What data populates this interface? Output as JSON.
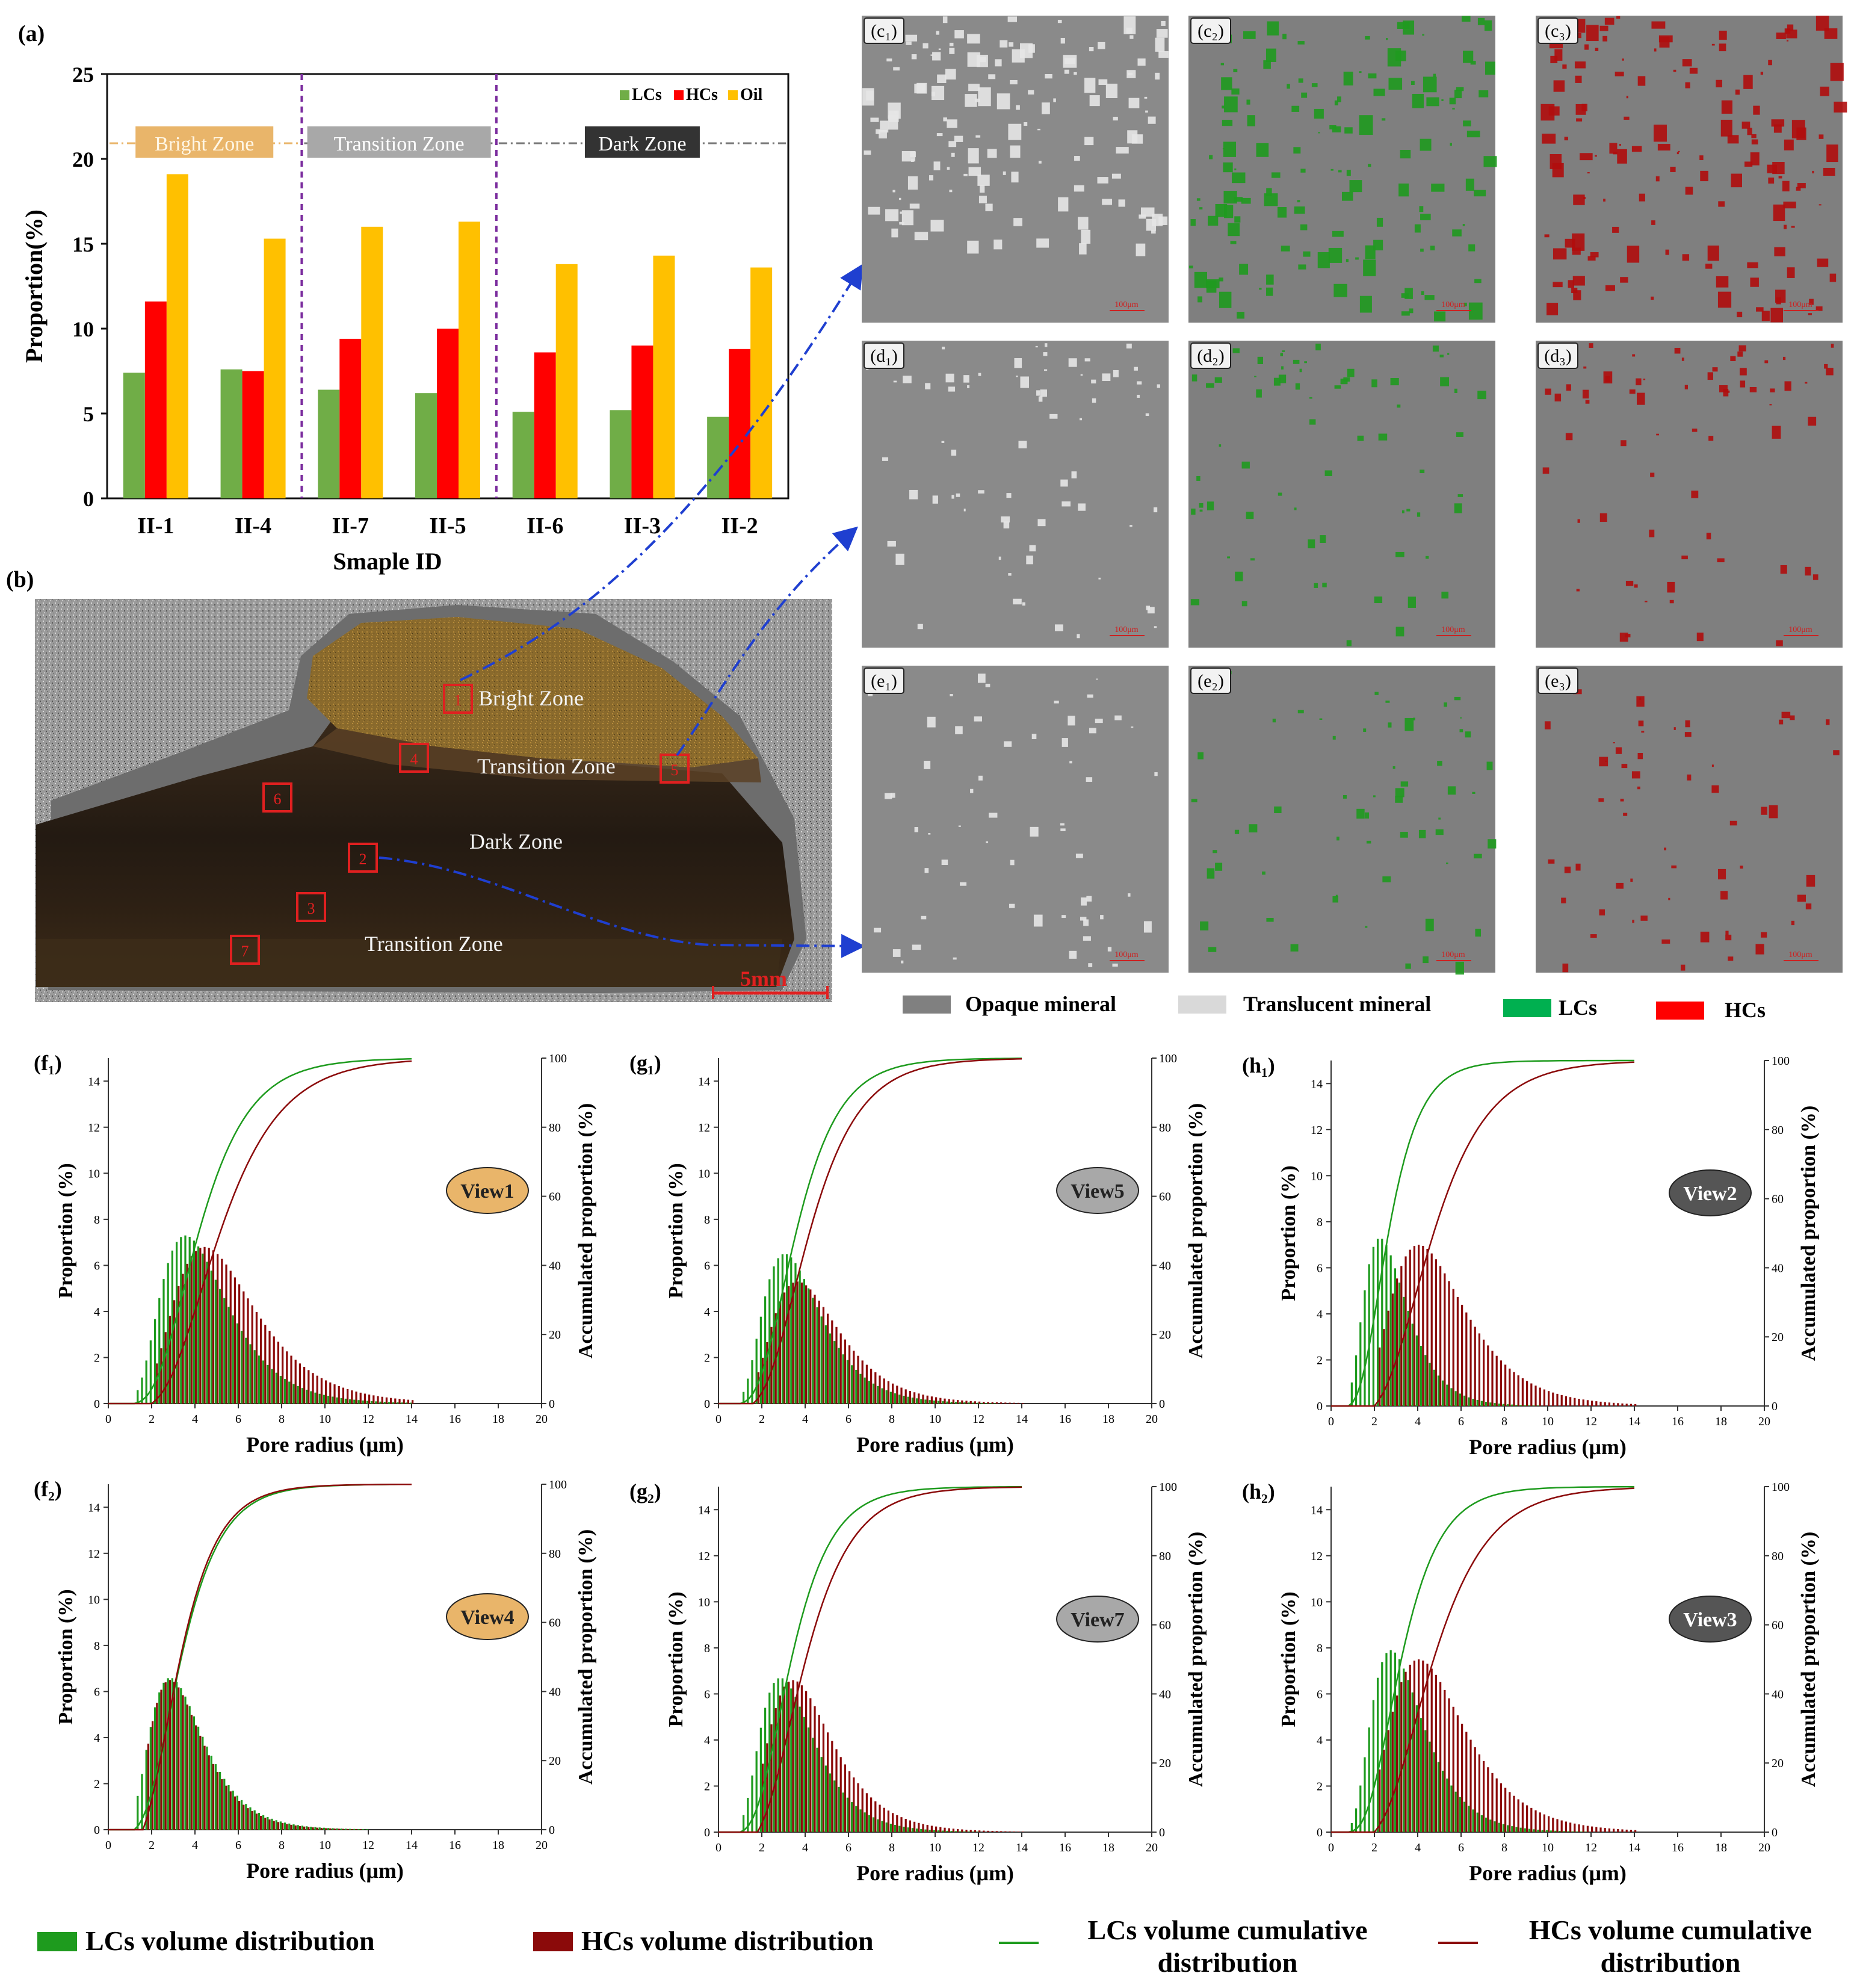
{
  "figure": {
    "panel_labels": {
      "a": "(a)",
      "b": "(b)",
      "c1": "(c₁)",
      "c2": "(c₂)",
      "c3": "(c₃)",
      "d1": "(d₁)",
      "d2": "(d₂)",
      "d3": "(d₃)",
      "e1": "(e₁)",
      "e2": "(e₂)",
      "e3": "(e₃)",
      "f1": "(f₁)",
      "g1": "(g₁)",
      "h1": "(h₁)",
      "f2": "(f₂)",
      "g2": "(g₂)",
      "h2": "(h₂)"
    },
    "colors": {
      "lcs": "#70ad47",
      "hcs": "#ff0000",
      "oil": "#ffc000",
      "lcs_dist": "#1e9b1e",
      "hcs_dist": "#8b0a0a",
      "opaque": "#808080",
      "translucent": "#d9d9d9",
      "arrow": "#1f3fd0",
      "view_orange": "#e9b56a",
      "view_grey": "#a8a8a8",
      "view_dark": "#555555"
    }
  },
  "photo": {
    "zone_labels": [
      "Bright Zone",
      "Transition Zone",
      "Dark Zone",
      "Transition Zone"
    ],
    "markers": [
      "1",
      "2",
      "3",
      "4",
      "5",
      "6",
      "7"
    ],
    "scale_bar": "5mm"
  },
  "micro": {
    "scale_text": "100μm",
    "legend": [
      {
        "label": "Opaque mineral",
        "color": "#808080"
      },
      {
        "label": "Translucent mineral",
        "color": "#d9d9d9"
      },
      {
        "label": "LCs",
        "color": "#00b050"
      },
      {
        "label": "HCs",
        "color": "#ff0000"
      }
    ]
  },
  "bottom_legend": {
    "lcs_dist": "LCs volume distribution",
    "hcs_dist": "HCs volume distribution",
    "lcs_cum": "LCs volume cumulative distribution",
    "hcs_cum": "HCs volume cumulative distribution"
  },
  "chart_data": [
    {
      "id": "a",
      "type": "bar",
      "title": "",
      "xlabel": "Smaple ID",
      "ylabel": "Proportion(%)",
      "ylim": [
        0,
        25
      ],
      "yticks": [
        0,
        5,
        10,
        15,
        20,
        25
      ],
      "categories": [
        "II-1",
        "II-4",
        "II-7",
        "II-5",
        "II-6",
        "II-3",
        "II-2"
      ],
      "series": [
        {
          "name": "LCs",
          "color": "#70ad47",
          "values": [
            7.4,
            7.6,
            6.4,
            6.2,
            5.1,
            5.2,
            4.8
          ]
        },
        {
          "name": "HCs",
          "color": "#ff0000",
          "values": [
            11.6,
            7.5,
            9.4,
            10.0,
            8.6,
            9.0,
            8.8
          ]
        },
        {
          "name": "Oil",
          "color": "#ffc000",
          "values": [
            19.1,
            15.3,
            16.0,
            16.3,
            13.8,
            14.3,
            13.6
          ]
        }
      ],
      "zones": [
        {
          "label": "Bright Zone",
          "from": 0,
          "to": 1
        },
        {
          "label": "Transition Zone",
          "from": 2,
          "to": 3
        },
        {
          "label": "Dark Zone",
          "from": 4,
          "to": 6
        }
      ],
      "legend": "top-right"
    },
    {
      "id": "f1",
      "type": "bar",
      "view": "View1",
      "view_style": "orange",
      "xlabel": "Pore radius (μm)",
      "ylabel": "Proportion (%)",
      "y2label": "Accumulated proportion (%)",
      "xlim": [
        0,
        20
      ],
      "ylim": [
        0,
        15
      ],
      "y2lim": [
        0,
        100
      ],
      "lcs": {
        "mode": 3.6,
        "peak": 7.3,
        "start": 1.4
      },
      "hcs": {
        "mode": 4.4,
        "peak": 6.8,
        "start": 2.0
      }
    },
    {
      "id": "g1",
      "type": "bar",
      "view": "View5",
      "view_style": "grey",
      "xlabel": "Pore radius (μm)",
      "ylabel": "Proportion (%)",
      "y2label": "Accumulated proportion (%)",
      "xlim": [
        0,
        20
      ],
      "ylim": [
        0,
        15
      ],
      "y2lim": [
        0,
        100
      ],
      "lcs": {
        "mode": 3.1,
        "peak": 6.5,
        "start": 1.2
      },
      "hcs": {
        "mode": 3.6,
        "peak": 5.3,
        "start": 1.6
      }
    },
    {
      "id": "h1",
      "type": "bar",
      "view": "View2",
      "view_style": "dark",
      "xlabel": "Pore radius (μm)",
      "ylabel": "Proportion (%)",
      "y2label": "Accumulated proportion (%)",
      "xlim": [
        0,
        20
      ],
      "ylim": [
        0,
        15
      ],
      "y2lim": [
        0,
        100
      ],
      "lcs": {
        "mode": 2.3,
        "peak": 7.3,
        "start": 1.0
      },
      "hcs": {
        "mode": 4.0,
        "peak": 7.0,
        "start": 2.0
      }
    },
    {
      "id": "f2",
      "type": "bar",
      "view": "View4",
      "view_style": "orange",
      "xlabel": "Pore radius (μm)",
      "ylabel": "Proportion (%)",
      "y2label": "Accumulated proportion (%)",
      "xlim": [
        0,
        20
      ],
      "ylim": [
        0,
        15
      ],
      "y2lim": [
        0,
        100
      ],
      "lcs": {
        "mode": 2.9,
        "peak": 6.6,
        "start": 1.4
      },
      "hcs": {
        "mode": 2.8,
        "peak": 6.5,
        "start": 1.6
      }
    },
    {
      "id": "g2",
      "type": "bar",
      "view": "View7",
      "view_style": "grey",
      "xlabel": "Pore radius (μm)",
      "ylabel": "Proportion (%)",
      "y2label": "Accumulated proportion (%)",
      "xlim": [
        0,
        20
      ],
      "ylim": [
        0,
        15
      ],
      "y2lim": [
        0,
        100
      ],
      "lcs": {
        "mode": 2.9,
        "peak": 6.7,
        "start": 1.2
      },
      "hcs": {
        "mode": 3.4,
        "peak": 6.6,
        "start": 1.8
      }
    },
    {
      "id": "h2",
      "type": "bar",
      "view": "View3",
      "view_style": "dark",
      "xlabel": "Pore radius (μm)",
      "ylabel": "Proportion (%)",
      "y2label": "Accumulated proportion (%)",
      "xlim": [
        0,
        20
      ],
      "ylim": [
        0,
        15
      ],
      "y2lim": [
        0,
        100
      ],
      "lcs": {
        "mode": 2.8,
        "peak": 7.9,
        "start": 1.0
      },
      "hcs": {
        "mode": 4.0,
        "peak": 7.5,
        "start": 2.0
      }
    }
  ]
}
